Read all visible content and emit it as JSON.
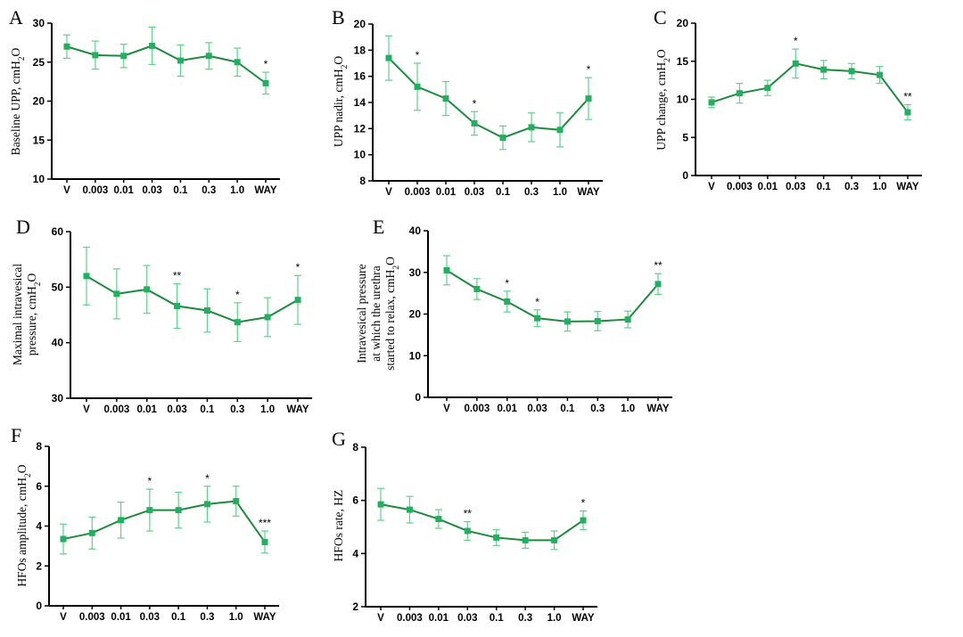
{
  "colors": {
    "line": "#1a8c3a",
    "marker": "#21b060",
    "errorbar": "#5fd08a"
  },
  "chart_data": [
    {
      "panel": "A",
      "type": "line",
      "ylabel": "Baseline UPP, cmH₂O",
      "ylim": [
        10,
        30
      ],
      "yticks": [
        "10",
        "15",
        "20",
        "25",
        "30"
      ],
      "categories": [
        "V",
        "0.003",
        "0.01",
        "0.03",
        "0.1",
        "0.3",
        "1.0",
        "WAY"
      ],
      "values": [
        27.0,
        25.9,
        25.8,
        27.1,
        25.2,
        25.8,
        25.0,
        22.3
      ],
      "errors": [
        1.5,
        1.8,
        1.5,
        2.4,
        2.0,
        1.7,
        1.8,
        1.4
      ],
      "sig": [
        "",
        "",
        "",
        "",
        "",
        "",
        "",
        "*"
      ]
    },
    {
      "panel": "B",
      "type": "line",
      "ylabel": "UPP nadir, cmH₂O",
      "ylim": [
        8,
        20
      ],
      "yticks": [
        "8",
        "10",
        "12",
        "14",
        "16",
        "18",
        "20"
      ],
      "categories": [
        "V",
        "0.003",
        "0.01",
        "0.03",
        "0.1",
        "0.3",
        "1.0",
        "WAY"
      ],
      "values": [
        17.4,
        15.2,
        14.3,
        12.4,
        11.3,
        12.1,
        11.9,
        14.3
      ],
      "errors": [
        1.7,
        1.8,
        1.3,
        0.9,
        0.9,
        1.1,
        1.3,
        1.6
      ],
      "sig": [
        "",
        "*",
        "",
        "*",
        "",
        "",
        "",
        "*"
      ]
    },
    {
      "panel": "C",
      "type": "line",
      "ylabel": "UPP change, cmH₂O",
      "ylim": [
        0,
        20
      ],
      "yticks": [
        "0",
        "5",
        "10",
        "15",
        "20"
      ],
      "categories": [
        "V",
        "0.003",
        "0.01",
        "0.03",
        "0.1",
        "0.3",
        "1.0",
        "WAY"
      ],
      "values": [
        9.6,
        10.8,
        11.5,
        14.7,
        13.9,
        13.7,
        13.2,
        8.3
      ],
      "errors": [
        0.7,
        1.3,
        1.0,
        1.9,
        1.2,
        1.0,
        1.1,
        1.0
      ],
      "sig": [
        "",
        "",
        "",
        "*",
        "",
        "",
        "",
        "**"
      ]
    },
    {
      "panel": "D",
      "type": "line",
      "ylabel": [
        "Maximal intravesical",
        "pressure, cmH₂O"
      ],
      "ylim": [
        30,
        60
      ],
      "yticks": [
        "30",
        "40",
        "50",
        "60"
      ],
      "categories": [
        "V",
        "0.003",
        "0.01",
        "0.03",
        "0.1",
        "0.3",
        "1.0",
        "WAY"
      ],
      "values": [
        52.0,
        48.8,
        49.6,
        46.6,
        45.8,
        43.7,
        44.6,
        47.7
      ],
      "errors": [
        5.2,
        4.5,
        4.3,
        4.0,
        3.9,
        3.5,
        3.5,
        4.4
      ],
      "sig": [
        "",
        "",
        "",
        "**",
        "",
        "*",
        "",
        "*"
      ]
    },
    {
      "panel": "E",
      "type": "line",
      "ylabel": [
        "Intravesical pressure",
        "at which the urethra",
        "started to relax, cmH₂O"
      ],
      "ylim": [
        0,
        40
      ],
      "yticks": [
        "0",
        "10",
        "20",
        "30",
        "40"
      ],
      "categories": [
        "V",
        "0.003",
        "0.01",
        "0.03",
        "0.1",
        "0.3",
        "1.0",
        "WAY"
      ],
      "values": [
        30.5,
        26.0,
        23.0,
        19.0,
        18.2,
        18.3,
        18.7,
        27.2
      ],
      "errors": [
        3.5,
        2.5,
        2.5,
        2.0,
        2.3,
        2.3,
        2.0,
        2.5
      ],
      "sig": [
        "",
        "",
        "*",
        "*",
        "",
        "",
        "",
        "**"
      ]
    },
    {
      "panel": "F",
      "type": "line",
      "ylabel": "HFOs amplitude, cmH₂O",
      "ylim": [
        0,
        8
      ],
      "yticks": [
        "0",
        "2",
        "4",
        "6",
        "8"
      ],
      "categories": [
        "V",
        "0.003",
        "0.01",
        "0.03",
        "0.1",
        "0.3",
        "1.0",
        "WAY"
      ],
      "values": [
        3.35,
        3.65,
        4.3,
        4.8,
        4.8,
        5.1,
        5.25,
        3.2
      ],
      "errors": [
        0.75,
        0.8,
        0.9,
        1.05,
        0.9,
        0.9,
        0.75,
        0.55
      ],
      "sig": [
        "",
        "",
        "",
        "*",
        "",
        "*",
        "",
        "***"
      ]
    },
    {
      "panel": "G",
      "type": "line",
      "ylabel": "HFOs rate, HZ",
      "ylim": [
        2,
        8
      ],
      "yticks": [
        "2",
        "4",
        "6",
        "8"
      ],
      "categories": [
        "V",
        "0.003",
        "0.01",
        "0.03",
        "0.1",
        "0.3",
        "1.0",
        "WAY"
      ],
      "values": [
        5.85,
        5.65,
        5.3,
        4.85,
        4.6,
        4.5,
        4.5,
        5.25
      ],
      "errors": [
        0.6,
        0.5,
        0.35,
        0.35,
        0.3,
        0.3,
        0.35,
        0.35
      ],
      "sig": [
        "",
        "",
        "",
        "**",
        "",
        "",
        "",
        "*"
      ]
    }
  ]
}
